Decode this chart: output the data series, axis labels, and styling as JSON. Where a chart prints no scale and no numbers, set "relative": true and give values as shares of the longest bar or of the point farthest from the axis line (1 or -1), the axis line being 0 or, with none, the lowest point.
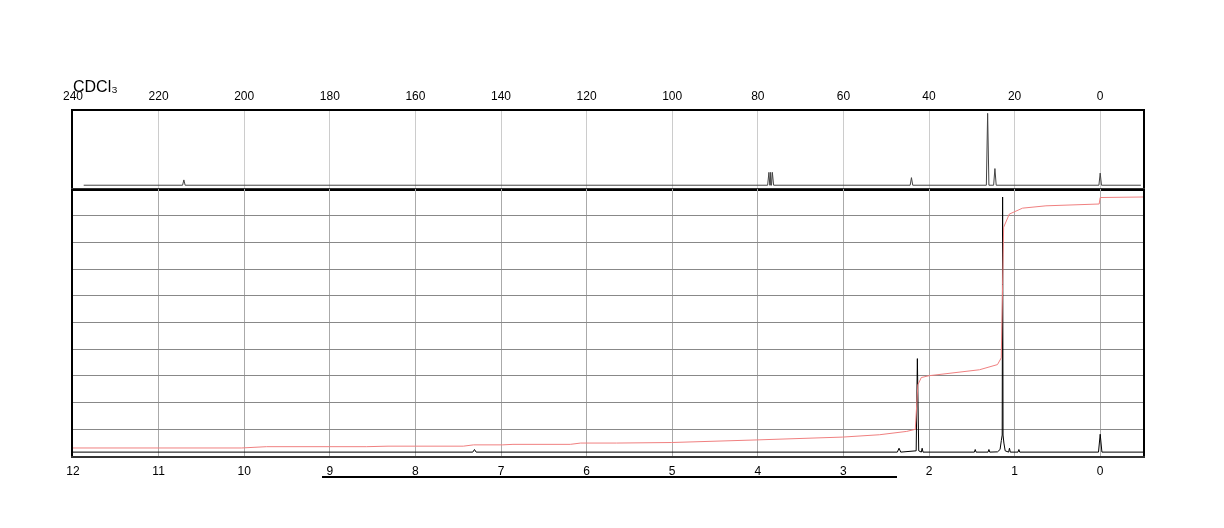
{
  "chart_data": [
    {
      "type": "line",
      "title": "CDCl₃",
      "relative": true,
      "grid": "x",
      "tick_labels": "x",
      "xlim": [
        240,
        -10
      ],
      "xticks": [
        240,
        220,
        200,
        180,
        160,
        140,
        120,
        100,
        80,
        60,
        40,
        20,
        0
      ],
      "series": [
        {
          "color": "#444444",
          "x": [
            237.5,
            214.4,
            214.1,
            213.8,
            77.7,
            77.4,
            77.2,
            77.1,
            77.0,
            76.9,
            76.8,
            76.6,
            76.3,
            44.4,
            44.1,
            43.8,
            26.6,
            26.3,
            26.0,
            24.9,
            24.6,
            24.3,
            0.3,
            0,
            -0.3,
            -9.5
          ],
          "values": [
            0.05,
            0.05,
            0.12,
            0.05,
            0.05,
            0.22,
            0.05,
            0.05,
            0.22,
            0.05,
            0.05,
            0.22,
            0.05,
            0.05,
            0.15,
            0.05,
            0.05,
            1.0,
            0.05,
            0.05,
            0.27,
            0.05,
            0.05,
            0.21,
            0.05,
            0.05
          ]
        }
      ]
    },
    {
      "type": "line",
      "relative": true,
      "grid": true,
      "tick_labels": "x",
      "xlim": [
        12,
        -0.5
      ],
      "xticks": [
        12,
        11,
        10,
        9,
        8,
        7,
        6,
        5,
        4,
        3,
        2,
        1,
        0
      ],
      "series": [
        {
          "color": "#000000",
          "x": [
            12,
            7.33,
            7.31,
            7.29,
            2.37,
            2.35,
            2.33,
            2.15,
            2.136,
            2.12,
            2.09,
            2.08,
            2.07,
            1.47,
            1.46,
            1.45,
            1.31,
            1.3,
            1.29,
            1.2,
            1.17,
            1.155,
            1.145,
            1.14,
            1.135,
            1.125,
            1.11,
            1.07,
            1.06,
            1.05,
            0.96,
            0.95,
            0.94,
            0.02,
            0,
            -0.02,
            -0.5
          ],
          "values": [
            0.015,
            0.015,
            0.025,
            0.015,
            0.015,
            0.03,
            0.015,
            0.02,
            0.376,
            0.02,
            0.015,
            0.03,
            0.015,
            0.015,
            0.025,
            0.015,
            0.015,
            0.025,
            0.015,
            0.016,
            0.025,
            0.06,
            0.081,
            1.0,
            0.081,
            0.05,
            0.02,
            0.015,
            0.03,
            0.015,
            0.015,
            0.025,
            0.015,
            0.015,
            0.084,
            0.015,
            0.015
          ]
        },
        {
          "color": "#f08080",
          "x": [
            12,
            10.03,
            9.74,
            8.57,
            8.32,
            7.44,
            7.32,
            6.98,
            6.86,
            6.19,
            6.07,
            5.65,
            5.01,
            4.02,
            3.01,
            2.58,
            2.26,
            2.16,
            2.13,
            2.09,
            2.0,
            1.41,
            1.2,
            1.156,
            1.14,
            1.128,
            1.062,
            0.907,
            0.634,
            0.012,
            0,
            -0.5
          ],
          "values": [
            0.031,
            0.031,
            0.036,
            0.036,
            0.038,
            0.038,
            0.043,
            0.043,
            0.045,
            0.045,
            0.05,
            0.05,
            0.052,
            0.062,
            0.073,
            0.082,
            0.095,
            0.103,
            0.275,
            0.303,
            0.31,
            0.333,
            0.353,
            0.379,
            0.663,
            0.883,
            0.934,
            0.957,
            0.966,
            0.973,
            0.998,
            1.0
          ]
        }
      ]
    }
  ]
}
